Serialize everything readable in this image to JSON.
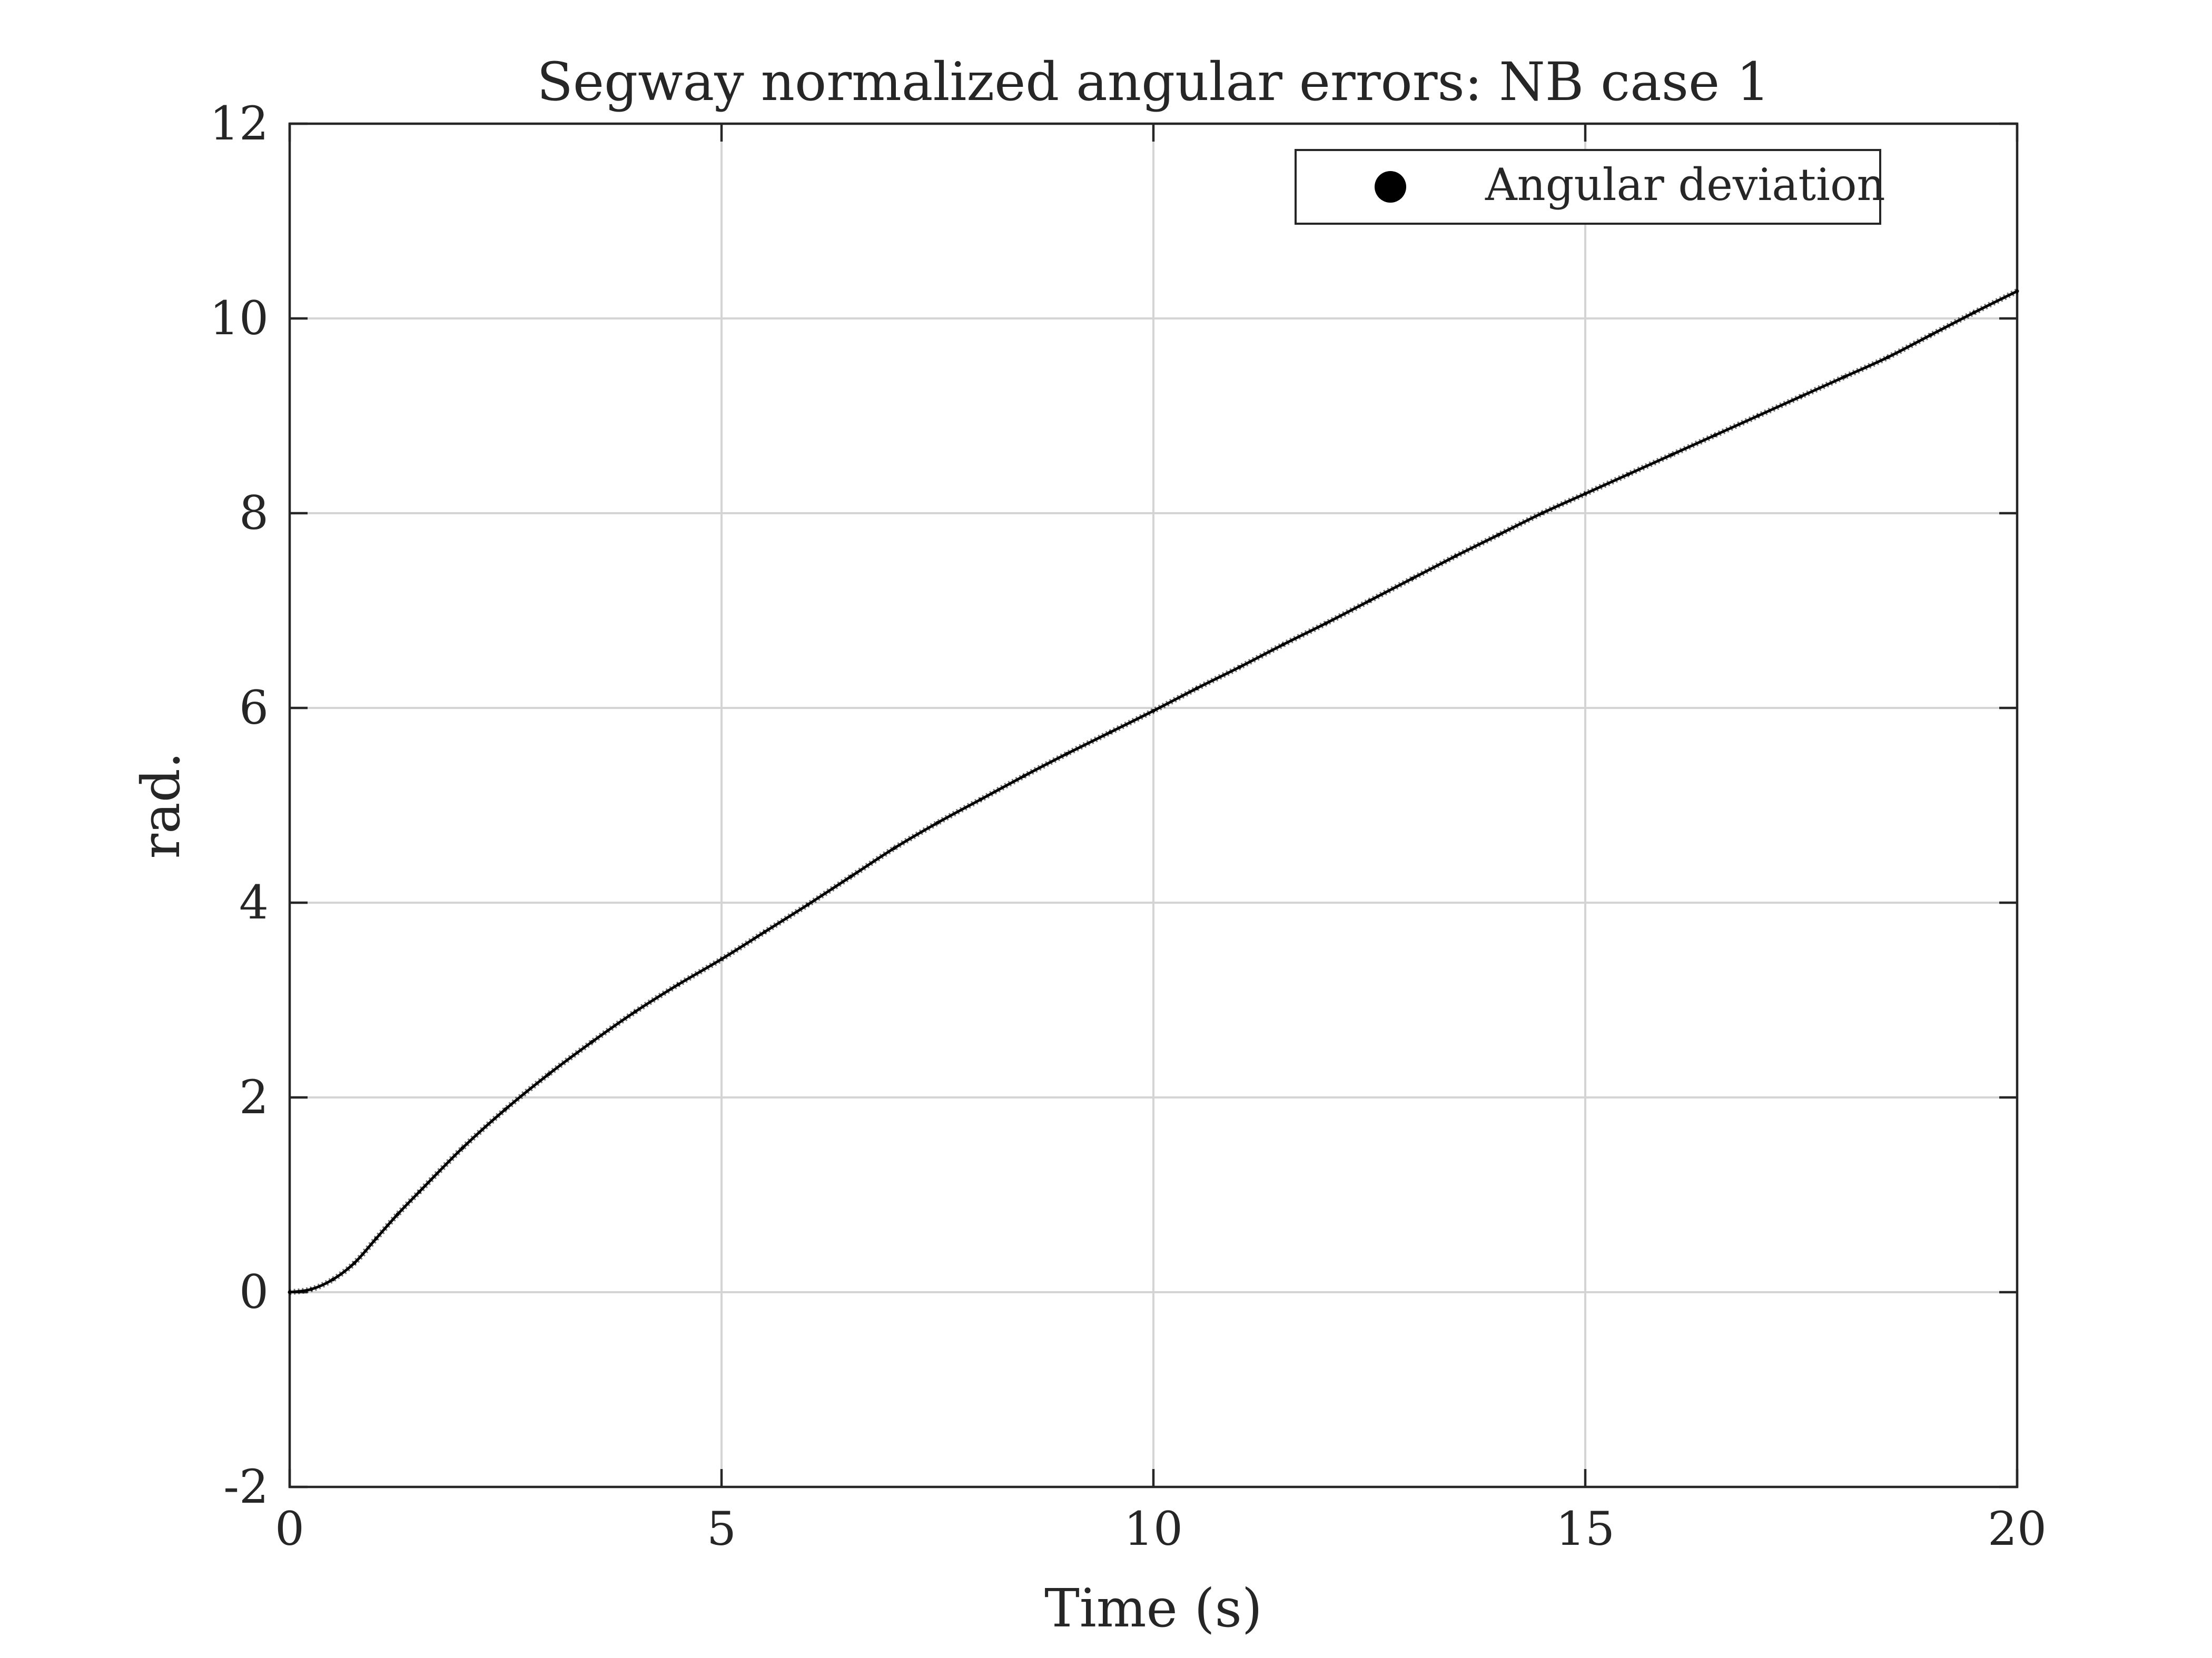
{
  "chart_data": {
    "type": "line",
    "title": "Segway normalized angular errors: NB case 1",
    "xlabel": "Time (s)",
    "ylabel": "rad.",
    "xlim": [
      0,
      20
    ],
    "ylim": [
      -2,
      12
    ],
    "x_ticks": [
      0,
      5,
      10,
      15,
      20
    ],
    "y_ticks": [
      -2,
      0,
      2,
      4,
      6,
      8,
      10,
      12
    ],
    "x_tick_labels": [
      "0",
      "5",
      "10",
      "15",
      "20"
    ],
    "y_tick_labels": [
      "-2",
      "0",
      "2",
      "4",
      "6",
      "8",
      "10",
      "12"
    ],
    "grid": true,
    "legend": {
      "position": "top-right",
      "entries": [
        {
          "label": "Angular deviation",
          "marker": "filled-circle"
        }
      ]
    },
    "series": [
      {
        "name": "Angular deviation",
        "color": "#000000",
        "x": [
          0,
          0.25,
          0.5,
          0.75,
          1,
          1.25,
          1.5,
          2,
          2.5,
          3,
          3.5,
          4,
          4.5,
          5,
          5.5,
          6,
          6.5,
          7,
          7.5,
          8,
          8.5,
          9,
          9.5,
          10,
          10.5,
          11,
          11.5,
          12,
          12.5,
          13,
          13.5,
          14,
          14.5,
          15,
          15.5,
          16,
          16.5,
          17,
          17.5,
          18,
          18.5,
          19,
          19.5,
          20
        ],
        "y": [
          0,
          0.03,
          0.13,
          0.3,
          0.55,
          0.8,
          1.03,
          1.48,
          1.88,
          2.24,
          2.57,
          2.88,
          3.16,
          3.42,
          3.7,
          3.98,
          4.27,
          4.56,
          4.82,
          5.06,
          5.3,
          5.53,
          5.75,
          5.97,
          6.2,
          6.42,
          6.65,
          6.87,
          7.1,
          7.33,
          7.56,
          7.78,
          8.0,
          8.2,
          8.4,
          8.6,
          8.8,
          9.0,
          9.2,
          9.4,
          9.6,
          9.83,
          10.06,
          10.28
        ]
      }
    ]
  }
}
